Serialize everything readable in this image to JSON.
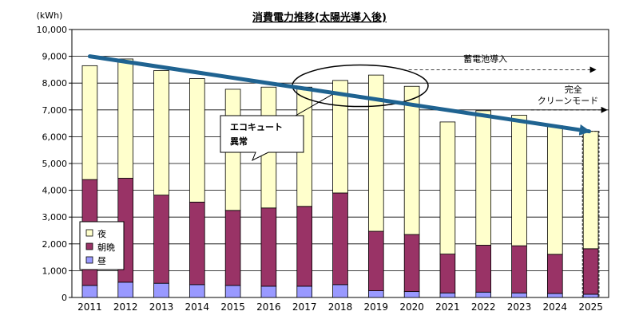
{
  "chart_data": {
    "type": "bar",
    "stacked": true,
    "title": "消費電力推移(太陽光導入後)",
    "unit_label": "(kWh)",
    "xlabel": "",
    "ylabel": "",
    "ylim": [
      0,
      10000
    ],
    "y_ticks": [
      "0",
      "1,000",
      "2,000",
      "3,000",
      "4,000",
      "5,000",
      "6,000",
      "7,000",
      "8,000",
      "9,000",
      "10,000"
    ],
    "grid": true,
    "legend_position": "bottom-left",
    "categories": [
      "2011",
      "2012",
      "2013",
      "2014",
      "2015",
      "2016",
      "2017",
      "2018",
      "2019",
      "2020",
      "2021",
      "2022",
      "2023",
      "2024",
      "2025"
    ],
    "series": [
      {
        "name": "昼",
        "color": "#9999ff",
        "values": [
          450,
          570,
          530,
          480,
          450,
          420,
          420,
          480,
          250,
          220,
          170,
          200,
          170,
          150,
          120
        ]
      },
      {
        "name": "朝晩",
        "color": "#993366",
        "values": [
          3950,
          3880,
          3290,
          3080,
          2800,
          2920,
          2980,
          3420,
          2220,
          2130,
          1450,
          1750,
          1760,
          1460,
          1700
        ]
      },
      {
        "name": "夜",
        "color": "#ffffcc",
        "values": [
          4250,
          4450,
          4650,
          4610,
          4520,
          4510,
          4450,
          4200,
          5830,
          5530,
          4930,
          5020,
          4870,
          4800,
          4380
        ]
      }
    ],
    "trend_line": {
      "color": "#1f6391",
      "from": [
        "2011",
        9000
      ],
      "to": [
        "2025",
        6200
      ]
    },
    "annotations": {
      "battery": {
        "text": "蓄電池導入",
        "from": "2020",
        "to": "2025",
        "y": 8500
      },
      "clean_mode": {
        "line1": "完全",
        "line2": "クリーンモード",
        "from": "2024",
        "to": "2025",
        "y": 7000
      },
      "ecocute": {
        "line1": "エコキュート",
        "line2": "異常",
        "target_years": [
          "2017",
          "2019"
        ]
      }
    }
  }
}
